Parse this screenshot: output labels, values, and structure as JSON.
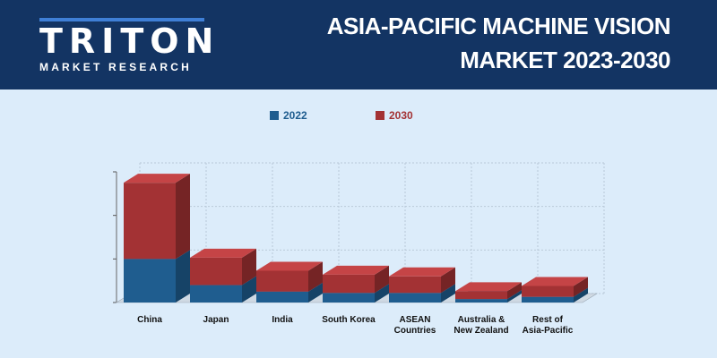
{
  "brand": {
    "name": "TRITON",
    "subtitle": "MARKET RESEARCH"
  },
  "header": {
    "title_line1": "ASIA-PACIFIC MACHINE VISION",
    "title_line2": "MARKET 2023-2030"
  },
  "colors": {
    "header_bg": "#133463",
    "page_bg": "#dcecfa",
    "series_2022": "#1f5d8f",
    "series_2030": "#a33234"
  },
  "chart_data": {
    "type": "bar",
    "stacked": true,
    "three_d": true,
    "categories": [
      [
        "China"
      ],
      [
        "Japan"
      ],
      [
        "India"
      ],
      [
        "South Korea"
      ],
      [
        "ASEAN",
        "Countries"
      ],
      [
        "Australia &",
        "New Zealand"
      ],
      [
        "Rest of",
        "Asia-Pacific"
      ]
    ],
    "series": [
      {
        "name": "2022",
        "values": [
          1.0,
          0.4,
          0.25,
          0.22,
          0.22,
          0.08,
          0.13
        ]
      },
      {
        "name": "2030",
        "values": [
          1.75,
          0.63,
          0.48,
          0.42,
          0.38,
          0.18,
          0.25
        ]
      }
    ],
    "ylim": [
      0,
      3
    ],
    "grid": true,
    "legend_position": "top"
  }
}
